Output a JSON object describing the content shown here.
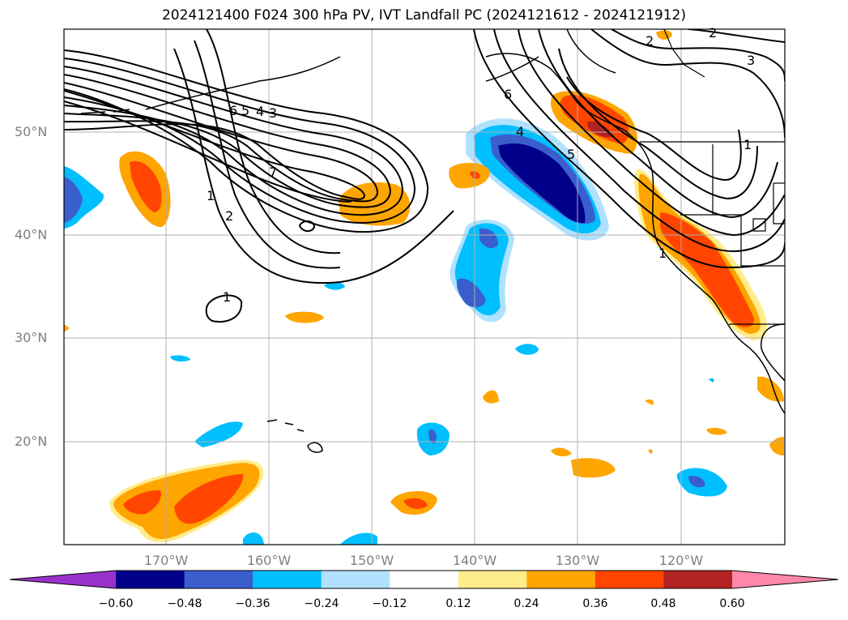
{
  "title": "2024121400 F024 300 hPa PV, IVT Landfall PC (2024121612 - 2024121912)",
  "lat_labels": [
    "50°N",
    "40°N",
    "30°N",
    "20°N"
  ],
  "lon_labels": [
    "170°W",
    "160°W",
    "150°W",
    "140°W",
    "130°W",
    "120°W"
  ],
  "colorbar": {
    "ticks": [
      "−0.60",
      "−0.48",
      "−0.36",
      "−0.24",
      "−0.12",
      "0.12",
      "0.24",
      "0.36",
      "0.48",
      "0.60"
    ],
    "colors": [
      "#9932CC",
      "#00008B",
      "#3A5FCD",
      "#00BFFF",
      "#B0E2FF",
      "#FFFFFF",
      "#FFEC8B",
      "#FFA500",
      "#FF4500",
      "#B22222",
      "#FF88AA"
    ]
  },
  "contour_labels": [
    "1",
    "2",
    "3",
    "4",
    "5",
    "6",
    "7",
    "2",
    "2",
    "3",
    "1",
    "4",
    "5",
    "6",
    "1",
    "1"
  ]
}
